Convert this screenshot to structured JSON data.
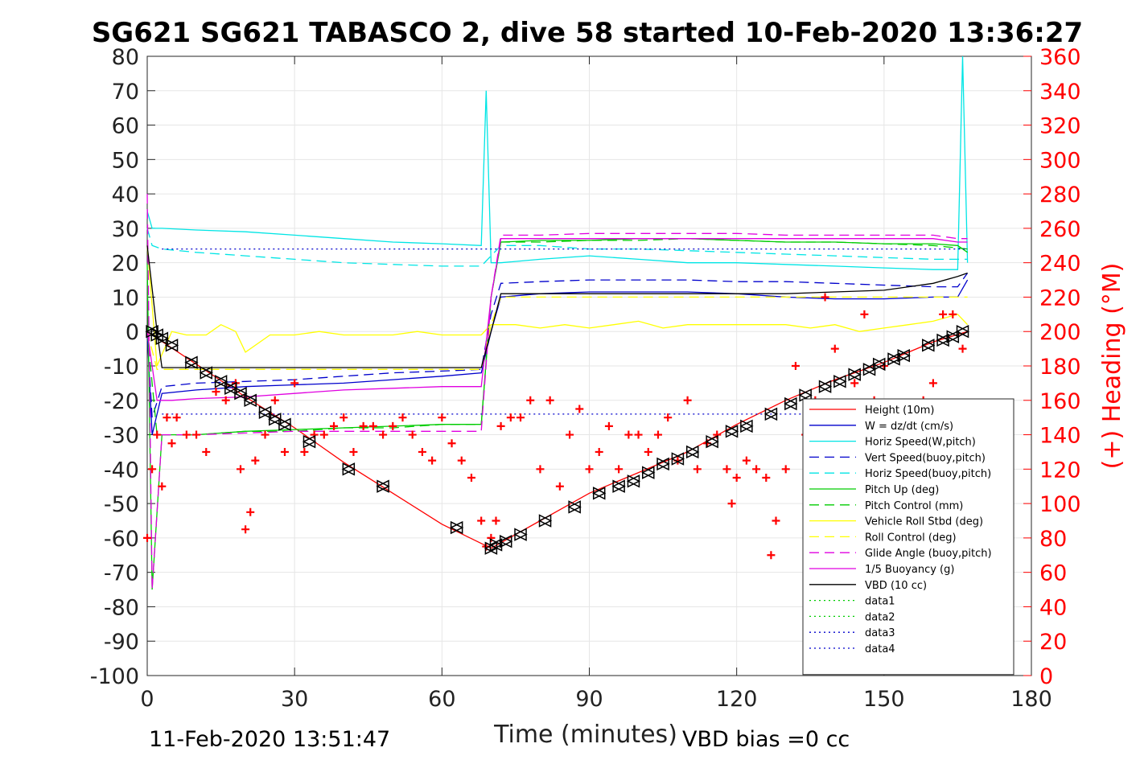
{
  "chart_data": {
    "type": "line",
    "title": "SG621 SG621 TABASCO 2, dive 58 started 10-Feb-2020 13:36:27",
    "xlabel": "Time (minutes)",
    "ylabel_right": "(+) Heading (°M)",
    "xlim": [
      0,
      180
    ],
    "ylim": [
      -100,
      80
    ],
    "ylim_right": [
      0,
      360
    ],
    "x_ticks": [
      "0",
      "30",
      "60",
      "90",
      "120",
      "150",
      "180"
    ],
    "y_ticks": [
      "80",
      "70",
      "60",
      "50",
      "40",
      "30",
      "20",
      "10",
      "0",
      "-10",
      "-20",
      "-30",
      "-40",
      "-50",
      "-60",
      "-70",
      "-80",
      "-90",
      "-100"
    ],
    "y_ticks_right": [
      "360",
      "340",
      "320",
      "300",
      "280",
      "260",
      "240",
      "220",
      "200",
      "180",
      "160",
      "140",
      "120",
      "100",
      "80",
      "60",
      "40",
      "20",
      "0"
    ],
    "grid": true,
    "legend_position": "bottom-right",
    "footer_left": "11-Feb-2020 13:51:47",
    "footer_right": "VBD bias =0 cc",
    "series": [
      {
        "name": "Height (10m)",
        "color": "#ff0000",
        "style": "solid",
        "x": [
          0,
          1,
          10,
          20,
          30,
          40,
          50,
          60,
          70,
          80,
          90,
          100,
          110,
          120,
          130,
          140,
          150,
          160,
          167
        ],
        "y": [
          0,
          -1,
          -9.5,
          -19,
          -28,
          -38,
          -47,
          -56,
          -63,
          -55,
          -47,
          -41,
          -35,
          -27,
          -20,
          -14,
          -9,
          -3,
          0
        ]
      },
      {
        "name": "W = dz/dt (cm/s)",
        "color": "#0000cc",
        "style": "solid",
        "x": [
          0,
          1,
          3,
          10,
          20,
          30,
          40,
          50,
          60,
          68,
          70,
          72,
          80,
          90,
          100,
          110,
          120,
          130,
          140,
          150,
          160,
          165,
          167
        ],
        "y": [
          0,
          -30,
          -18,
          -17,
          -16,
          -15.5,
          -15,
          -14,
          -13,
          -12,
          0,
          10,
          11,
          11.5,
          11.5,
          11.5,
          11,
          10,
          9.5,
          9.5,
          10,
          10,
          15
        ]
      },
      {
        "name": "Horiz Speed(W,pitch)",
        "color": "#00e5e5",
        "style": "solid",
        "x": [
          0,
          1,
          3,
          10,
          20,
          30,
          40,
          50,
          60,
          68,
          69,
          70,
          72,
          80,
          90,
          100,
          110,
          120,
          130,
          140,
          150,
          160,
          165,
          166,
          167
        ],
        "y": [
          35,
          30,
          30,
          29.5,
          29,
          28,
          27,
          26,
          25.5,
          25,
          70,
          20,
          20,
          21,
          22,
          21,
          20,
          20,
          19.5,
          19,
          18.5,
          18,
          18,
          80,
          20
        ]
      },
      {
        "name": "Vert Speed(buoy,pitch)",
        "color": "#0000cc",
        "style": "dash",
        "x": [
          0,
          1,
          3,
          10,
          20,
          30,
          40,
          50,
          60,
          68,
          70,
          72,
          80,
          90,
          100,
          110,
          120,
          130,
          140,
          150,
          160,
          165,
          167
        ],
        "y": [
          0,
          -25,
          -16,
          -15,
          -14.5,
          -14,
          -13,
          -12,
          -11.5,
          -11,
          5,
          14,
          14.5,
          15,
          15,
          15,
          14.5,
          14.5,
          14,
          13.5,
          13,
          13,
          17
        ]
      },
      {
        "name": "Horiz Speed(buoy,pitch)",
        "color": "#00e5e5",
        "style": "dash",
        "x": [
          0,
          1,
          3,
          10,
          20,
          30,
          40,
          50,
          60,
          68,
          70,
          72,
          80,
          90,
          100,
          110,
          120,
          130,
          140,
          150,
          160,
          167
        ],
        "y": [
          30,
          25,
          24,
          23,
          22,
          21,
          20,
          19.5,
          19,
          19,
          22,
          25,
          25,
          24,
          24,
          23.5,
          23,
          22.5,
          22,
          21.5,
          21,
          21
        ]
      },
      {
        "name": "Pitch Up (deg)",
        "color": "#00cc00",
        "style": "solid",
        "x": [
          0,
          1,
          3,
          10,
          20,
          30,
          40,
          50,
          60,
          68,
          70,
          72,
          80,
          90,
          100,
          110,
          120,
          130,
          140,
          150,
          160,
          165,
          167
        ],
        "y": [
          20,
          -75,
          -30,
          -30,
          -29,
          -28.5,
          -28,
          -27.5,
          -27,
          -27,
          10,
          26,
          26.5,
          26.5,
          27,
          27,
          26.5,
          26,
          26,
          25.5,
          25.5,
          25,
          23
        ]
      },
      {
        "name": "Pitch Control (mm)",
        "color": "#00cc00",
        "style": "dash",
        "x": [
          0,
          2,
          10,
          20,
          30,
          40,
          50,
          60,
          68,
          70,
          72,
          80,
          90,
          100,
          110,
          120,
          130,
          140,
          150,
          160,
          167
        ],
        "y": [
          0,
          -30,
          -30,
          -29,
          -29,
          -28,
          -28,
          -27,
          -27,
          10,
          26,
          26,
          26.5,
          26.5,
          27,
          26.5,
          26,
          26,
          25.5,
          25,
          24
        ]
      },
      {
        "name": "Vehicle Roll Stbd (deg)",
        "color": "#ffff00",
        "style": "solid",
        "x": [
          0,
          2,
          5,
          8,
          12,
          15,
          18,
          20,
          25,
          30,
          35,
          40,
          45,
          50,
          55,
          60,
          65,
          68,
          70,
          75,
          80,
          85,
          90,
          95,
          100,
          105,
          110,
          115,
          120,
          125,
          130,
          135,
          140,
          145,
          150,
          155,
          160,
          165,
          167
        ],
        "y": [
          25,
          -10,
          0,
          -1,
          -1,
          2,
          0,
          -6,
          -1,
          -1,
          0,
          -1,
          -1,
          -1,
          0,
          -1,
          -1,
          -1,
          2,
          2,
          1,
          2,
          1,
          2,
          3,
          1,
          2,
          2,
          2,
          2,
          2,
          1,
          2,
          0,
          1,
          2,
          3,
          5,
          2
        ]
      },
      {
        "name": "Roll Control (deg)",
        "color": "#ffff00",
        "style": "dash",
        "x": [
          0,
          2,
          10,
          20,
          30,
          40,
          50,
          60,
          68,
          70,
          72,
          80,
          90,
          100,
          110,
          120,
          130,
          140,
          150,
          160,
          167
        ],
        "y": [
          0,
          -11,
          -11,
          -11,
          -11,
          -11,
          -11,
          -11,
          -11,
          2,
          10,
          10,
          10,
          10,
          10,
          10,
          10,
          10,
          10,
          10,
          10
        ]
      },
      {
        "name": "Glide Angle (buoy,pitch)",
        "color": "#e000e0",
        "style": "dash",
        "x": [
          0,
          1,
          3,
          10,
          20,
          30,
          40,
          50,
          60,
          68,
          70,
          72,
          80,
          90,
          100,
          110,
          120,
          130,
          140,
          150,
          160,
          165,
          167
        ],
        "y": [
          40,
          -75,
          -30,
          -30,
          -29.5,
          -29,
          -29,
          -29,
          -29,
          -29,
          10,
          28,
          28,
          28.5,
          28.5,
          28.5,
          28.5,
          28,
          28,
          28,
          28,
          27,
          27
        ]
      },
      {
        "name": "1/5 Buoyancy (g)",
        "color": "#e000e0",
        "style": "solid",
        "x": [
          0,
          2,
          5,
          10,
          20,
          30,
          40,
          50,
          60,
          68,
          70,
          72,
          80,
          90,
          100,
          110,
          120,
          130,
          140,
          150,
          160,
          165,
          167
        ],
        "y": [
          0,
          -20,
          -20,
          -19.5,
          -19,
          -18,
          -17,
          -16.5,
          -16,
          -16,
          10,
          27,
          27,
          27,
          27,
          27,
          27,
          27,
          27,
          27,
          27,
          26,
          26
        ]
      },
      {
        "name": "VBD (10 cc)",
        "color": "#000000",
        "style": "solid",
        "x": [
          0,
          2,
          3,
          10,
          20,
          30,
          40,
          50,
          60,
          68,
          70,
          72,
          80,
          90,
          100,
          110,
          120,
          130,
          140,
          150,
          155,
          160,
          165,
          167
        ],
        "y": [
          25,
          0,
          -10.5,
          -10.5,
          -10.5,
          -10.5,
          -10.5,
          -10.5,
          -10.5,
          -10.5,
          0,
          11,
          11,
          11,
          11,
          11,
          11,
          11,
          11.5,
          12,
          13,
          14,
          16,
          17
        ]
      },
      {
        "name": "data1",
        "color": "#00cc00",
        "style": "dot",
        "x": [],
        "y": []
      },
      {
        "name": "data2",
        "color": "#00cc00",
        "style": "dot",
        "x": [],
        "y": []
      },
      {
        "name": "data3",
        "color": "#0000cc",
        "style": "dot",
        "x": [
          3,
          167
        ],
        "y": [
          24,
          24
        ]
      },
      {
        "name": "data4",
        "color": "#0000cc",
        "style": "dot",
        "x": [
          3,
          167
        ],
        "y": [
          -24,
          -24
        ]
      }
    ],
    "heading_series": {
      "color": "#ff0000",
      "marker": "+",
      "x": [
        0,
        1,
        2,
        3,
        4,
        5,
        6,
        8,
        10,
        12,
        14,
        16,
        18,
        19,
        20,
        21,
        22,
        24,
        26,
        28,
        30,
        32,
        34,
        36,
        38,
        40,
        42,
        44,
        46,
        48,
        50,
        52,
        54,
        56,
        58,
        60,
        62,
        64,
        66,
        68,
        69,
        70,
        71,
        72,
        74,
        76,
        78,
        80,
        82,
        84,
        86,
        88,
        90,
        92,
        94,
        96,
        98,
        100,
        102,
        104,
        106,
        108,
        110,
        112,
        114,
        116,
        118,
        119,
        120,
        122,
        124,
        126,
        127,
        128,
        130,
        132,
        134,
        136,
        138,
        140,
        142,
        144,
        146,
        148,
        150,
        152,
        154,
        156,
        158,
        160,
        162,
        164,
        166
      ],
      "y": [
        80,
        120,
        140,
        110,
        150,
        135,
        150,
        140,
        140,
        130,
        165,
        160,
        170,
        120,
        85,
        95,
        125,
        140,
        160,
        130,
        170,
        130,
        140,
        140,
        145,
        150,
        130,
        145,
        145,
        140,
        145,
        150,
        140,
        130,
        125,
        150,
        135,
        125,
        115,
        90,
        75,
        80,
        90,
        145,
        150,
        150,
        160,
        120,
        160,
        110,
        140,
        155,
        120,
        130,
        145,
        120,
        140,
        140,
        130,
        140,
        150,
        125,
        160,
        120,
        135,
        140,
        120,
        100,
        115,
        125,
        120,
        115,
        70,
        90,
        120,
        180,
        140,
        160,
        220,
        190,
        150,
        170,
        210,
        160,
        180,
        150,
        140,
        150,
        160,
        170,
        210,
        210,
        190
      ]
    },
    "markers_series": {
      "color": "#000000",
      "marker": "triangles",
      "x": [
        1,
        2,
        3,
        5,
        9,
        12,
        15,
        17,
        19,
        21,
        24,
        26,
        28,
        33,
        41,
        48,
        63,
        70,
        71,
        73,
        76,
        81,
        87,
        92,
        96,
        99,
        102,
        105,
        108,
        111,
        115,
        119,
        122,
        127,
        131,
        134,
        138,
        141,
        144,
        147,
        149,
        152,
        154,
        159,
        162,
        164,
        166
      ],
      "y": [
        0,
        -1,
        -2,
        -4,
        -9,
        -12,
        -14.5,
        -16.5,
        -18,
        -20,
        -23.5,
        -25.5,
        -27,
        -32,
        -40,
        -45,
        -57,
        -63,
        -62,
        -61,
        -59,
        -55,
        -51,
        -47,
        -45,
        -43.5,
        -41,
        -38.5,
        -37,
        -35,
        -32,
        -29,
        -27.5,
        -24,
        -21,
        -18.5,
        -16,
        -14.5,
        -12.5,
        -11,
        -9.5,
        -8,
        -7,
        -4,
        -2.5,
        -1.5,
        0
      ]
    }
  }
}
